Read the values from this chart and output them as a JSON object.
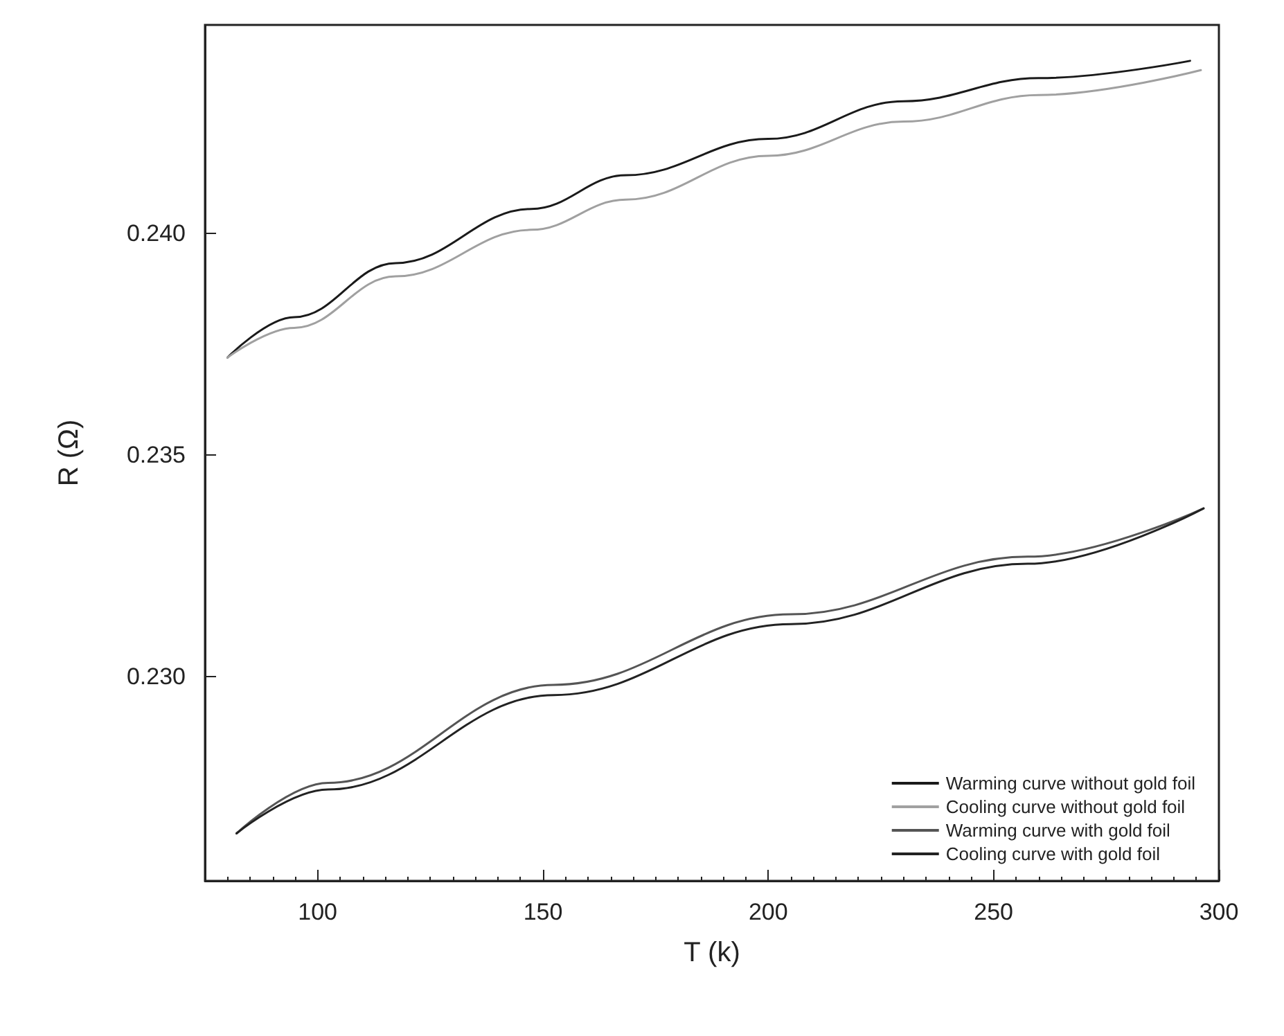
{
  "chart_data": {
    "type": "line",
    "xlabel": "T (k)",
    "ylabel": "R (Ω)",
    "xlim": [
      75,
      300
    ],
    "xticks": [
      100,
      150,
      200,
      250,
      300
    ],
    "ylim": [
      0.2254,
      0.2447
    ],
    "yticks": [
      {
        "value": 0.23,
        "label": "0.230"
      },
      0.235,
      {
        "value": 0.24,
        "label": "0.240"
      }
    ],
    "grid": false,
    "legend": "bottom right",
    "marker": "none",
    "line_style": "solid",
    "series": [
      {
        "name": "Warming curve without gold foil",
        "color": "#1a1a1a",
        "x": [
          80,
          94.8,
          117.3,
          147.4,
          168.4,
          200,
          230,
          260,
          293.6
        ],
        "values": [
          0.2372,
          0.23811,
          0.23933,
          0.24055,
          0.24131,
          0.24213,
          0.24298,
          0.2435,
          0.24389
        ]
      },
      {
        "name": "Cooling curve without gold foil",
        "color": "#a0a0a0",
        "x": [
          80,
          94.8,
          117.3,
          147.4,
          168.4,
          200,
          230,
          260,
          296
        ],
        "values": [
          0.2372,
          0.23787,
          0.23903,
          0.24008,
          0.24076,
          0.24175,
          0.24252,
          0.24312,
          0.24368
        ]
      },
      {
        "name": "Warming curve with gold foil",
        "color": "#555555",
        "x": [
          82,
          102.3,
          152.4,
          205,
          257.6,
          296.6
        ],
        "values": [
          0.22647,
          0.22761,
          0.22982,
          0.23141,
          0.23271,
          0.2338
        ]
      },
      {
        "name": "Cooling curve with gold foil",
        "color": "#222222",
        "x": [
          82,
          102.3,
          152.4,
          205,
          257.6,
          296.6
        ],
        "values": [
          0.22647,
          0.22746,
          0.22959,
          0.23119,
          0.23255,
          0.2338
        ]
      }
    ]
  }
}
